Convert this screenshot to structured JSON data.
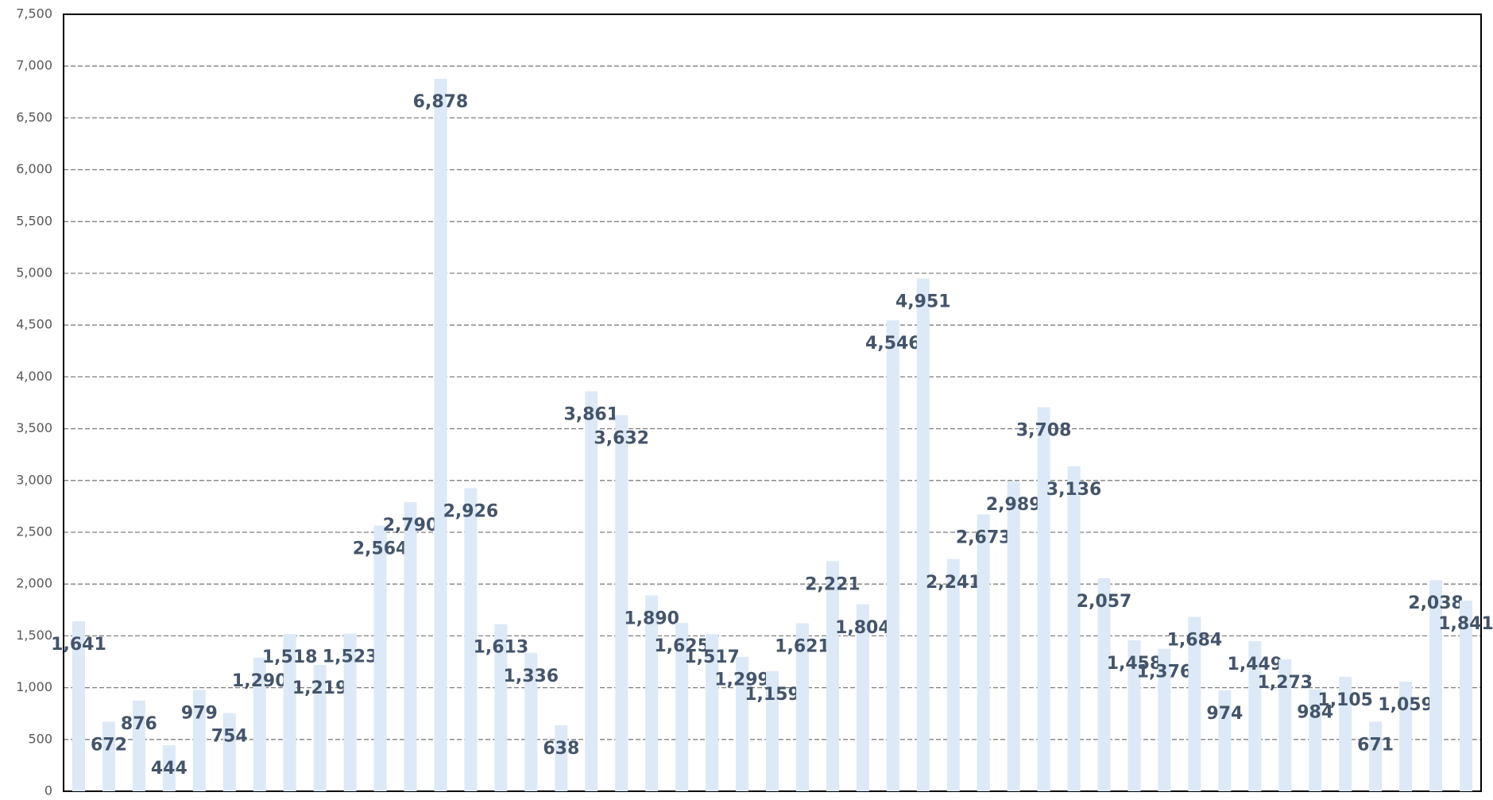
{
  "chart_data": {
    "type": "bar",
    "values": [
      1641,
      672,
      876,
      444,
      979,
      754,
      1290,
      1518,
      1219,
      1523,
      2564,
      2790,
      6878,
      2926,
      1613,
      1336,
      638,
      3861,
      3632,
      1890,
      1625,
      1517,
      1299,
      1159,
      1621,
      2221,
      1804,
      4546,
      4951,
      2241,
      2673,
      2989,
      3708,
      3136,
      2057,
      1458,
      1376,
      1684,
      974,
      1449,
      1273,
      984,
      1105,
      671,
      1059,
      2038,
      1841
    ],
    "value_labels": [
      "1,641",
      "672",
      "876",
      "444",
      "979",
      "754",
      "1,290",
      "1,518",
      "1,219",
      "1,523",
      "2,564",
      "2,790",
      "6,878",
      "2,926",
      "1,613",
      "1,336",
      "638",
      "3,861",
      "3,632",
      "1,890",
      "1,625",
      "1,517",
      "1,299",
      "1,159",
      "1,621",
      "2,221",
      "1,804",
      "4,546",
      "4,951",
      "2,241",
      "2,673",
      "2,989",
      "3,708",
      "3,136",
      "2,057",
      "1,458",
      "1,376",
      "1,684",
      "974",
      "1,449",
      "1,273",
      "984",
      "1,105",
      "671",
      "1,059",
      "2,038",
      "1,841"
    ],
    "color": "#dde9f6",
    "ylim": [
      0,
      7500
    ],
    "yticks": [
      0,
      500,
      {
        "value": 1000,
        "label": "1,000"
      },
      {
        "value": 1500,
        "label": "1,500"
      },
      {
        "value": 2000,
        "label": "2,000"
      },
      {
        "value": 2500,
        "label": "2,500"
      },
      {
        "value": 3000,
        "label": "3,000"
      },
      {
        "value": 3500,
        "label": "3,500"
      },
      {
        "value": 4000,
        "label": "4,000"
      },
      {
        "value": 4500,
        "label": "4,500"
      },
      {
        "value": 5000,
        "label": "5,000"
      },
      {
        "value": 5500,
        "label": "5,500"
      },
      {
        "value": 6000,
        "label": "6,000"
      },
      {
        "value": 6500,
        "label": "6,500"
      },
      {
        "value": 7000,
        "label": "7,000"
      },
      {
        "value": 7500,
        "label": "7,500"
      }
    ],
    "grid": true
  }
}
